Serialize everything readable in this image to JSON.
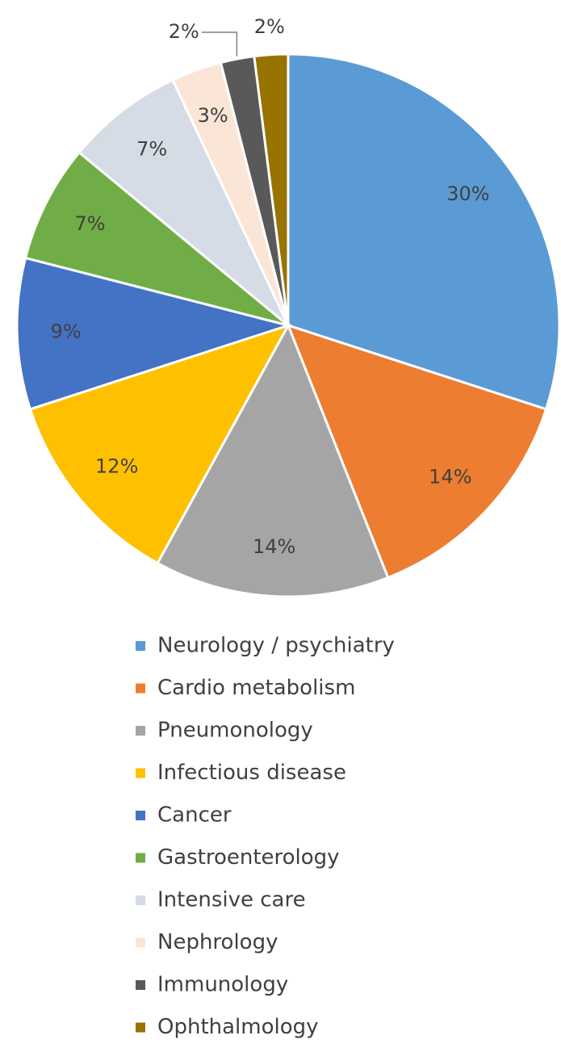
{
  "chart_data": {
    "type": "pie",
    "categories": [
      "Neurology / psychiatry",
      "Cardio metabolism",
      "Pneumonology",
      "Infectious disease",
      "Cancer",
      "Gastroenterology",
      "Intensive care",
      "Nephrology",
      "Immunology",
      "Ophthalmology"
    ],
    "values": [
      30,
      14,
      14,
      12,
      9,
      7,
      7,
      3,
      2,
      2
    ],
    "value_labels": [
      "30%",
      "14%",
      "14%",
      "12%",
      "9%",
      "7%",
      "7%",
      "3%",
      "2%",
      "2%"
    ],
    "colors": [
      "#5b9bd5",
      "#ed7d31",
      "#a5a5a5",
      "#ffc000",
      "#4472c4",
      "#70ad47",
      "#d6dce5",
      "#fbe5d6",
      "#595959",
      "#997300"
    ],
    "legend": "bottom"
  }
}
